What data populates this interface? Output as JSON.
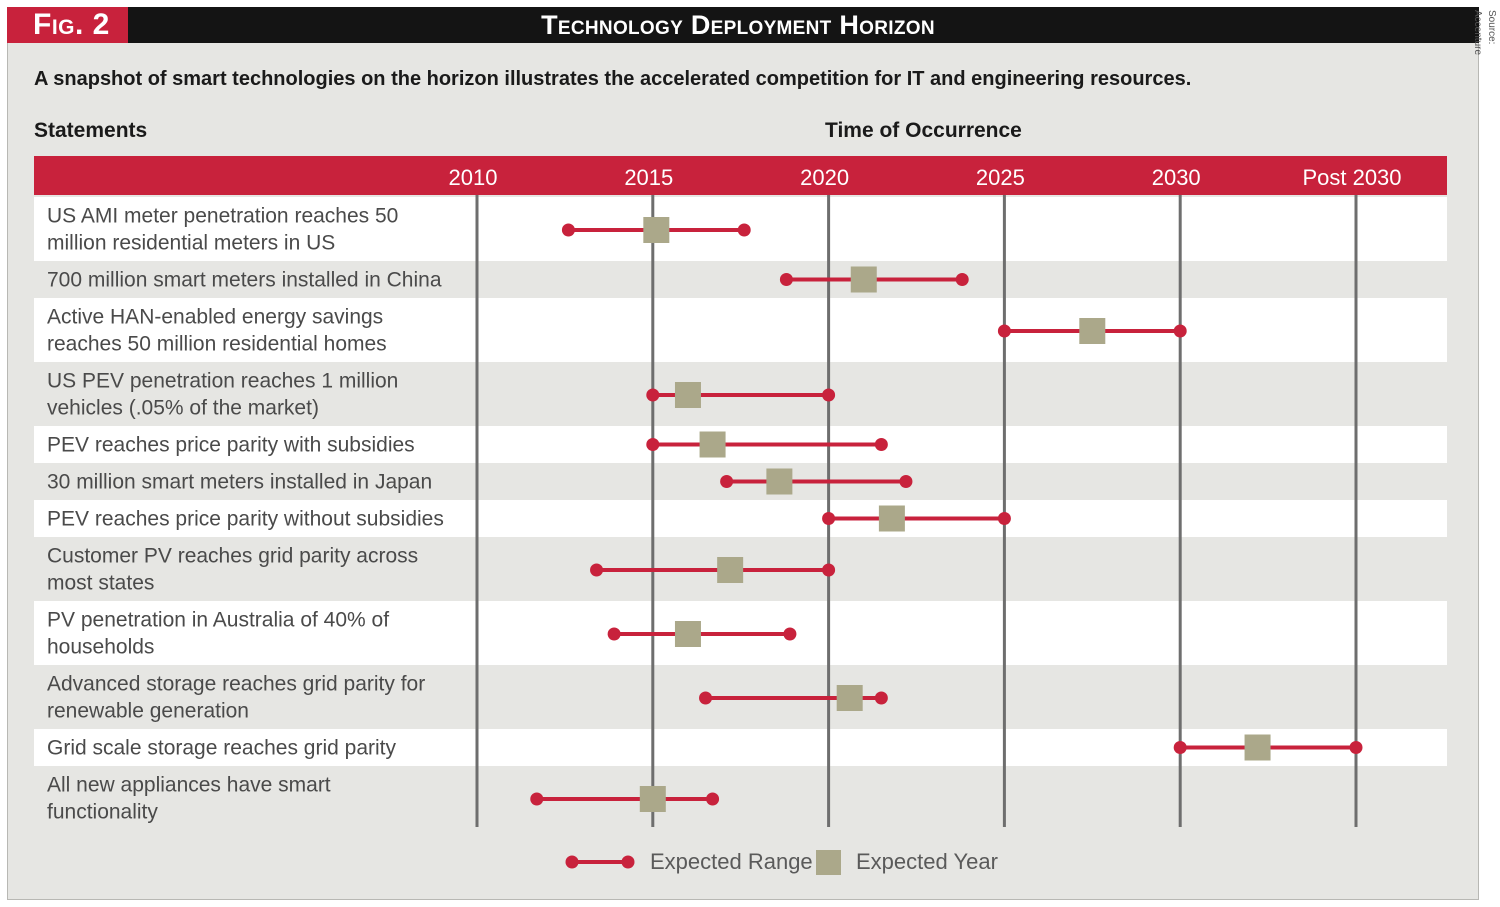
{
  "header": {
    "fig_label": "Fig. 2",
    "title": "Technology Deployment Horizon",
    "source": "Source: Accenture"
  },
  "subtitle": "A snapshot of smart technologies on the horizon illustrates the accelerated competition for IT and engineering resources.",
  "columns": {
    "statements": "Statements",
    "time": "Time of Occurrence"
  },
  "colors": {
    "accent": "#c8223c",
    "marker": "#aba88a",
    "grid": "#6e6e6e",
    "row_band": "#ffffff"
  },
  "chart_data": {
    "type": "range",
    "title": "Technology Deployment Horizon",
    "x_ticks": [
      {
        "label": "2010",
        "value": 2010
      },
      {
        "label": "2015",
        "value": 2015
      },
      {
        "label": "2020",
        "value": 2020
      },
      {
        "label": "2025",
        "value": 2025
      },
      {
        "label": "2030",
        "value": 2030
      },
      {
        "label": "Post 2030",
        "value": 2035
      }
    ],
    "xlim": [
      2010,
      2035
    ],
    "series": [
      {
        "name": "Expected Range",
        "type": "range"
      },
      {
        "name": "Expected Year",
        "type": "point"
      }
    ],
    "rows": [
      {
        "lines": [
          "US AMI meter penetration reaches 50",
          "million residential meters in US"
        ],
        "start": 2012.6,
        "end": 2017.6,
        "expected": 2015.1
      },
      {
        "lines": [
          "700 million smart meters installed in China"
        ],
        "start": 2018.8,
        "end": 2023.8,
        "expected": 2021.0
      },
      {
        "lines": [
          "Active HAN-enabled energy savings",
          "reaches 50 million residential homes"
        ],
        "start": 2025.0,
        "end": 2030.0,
        "expected": 2027.5
      },
      {
        "lines": [
          "US PEV penetration reaches 1 million",
          "vehicles (.05% of the market)"
        ],
        "start": 2015.0,
        "end": 2020.0,
        "expected": 2016.0
      },
      {
        "lines": [
          "PEV reaches price parity with subsidies"
        ],
        "start": 2015.0,
        "end": 2021.5,
        "expected": 2016.7
      },
      {
        "lines": [
          "30 million smart meters installed in Japan"
        ],
        "start": 2017.1,
        "end": 2022.2,
        "expected": 2018.6
      },
      {
        "lines": [
          "PEV reaches price parity without subsidies"
        ],
        "start": 2020.0,
        "end": 2025.0,
        "expected": 2021.8
      },
      {
        "lines": [
          "Customer PV reaches grid parity across",
          "most states"
        ],
        "start": 2013.4,
        "end": 2020.0,
        "expected": 2017.2
      },
      {
        "lines": [
          "PV penetration in Australia of 40% of",
          "households"
        ],
        "start": 2013.9,
        "end": 2018.9,
        "expected": 2016.0
      },
      {
        "lines": [
          "Advanced storage reaches grid parity for",
          "renewable generation"
        ],
        "start": 2016.5,
        "end": 2021.5,
        "expected": 2020.6
      },
      {
        "lines": [
          "Grid scale storage reaches grid parity"
        ],
        "start": 2030.0,
        "end": 2035.0,
        "expected": 2032.2
      },
      {
        "lines": [
          "All new appliances have smart",
          "functionality"
        ],
        "start": 2011.7,
        "end": 2016.7,
        "expected": 2015.0
      }
    ]
  },
  "legend": {
    "range_label": "Expected Range",
    "year_label": "Expected Year"
  }
}
